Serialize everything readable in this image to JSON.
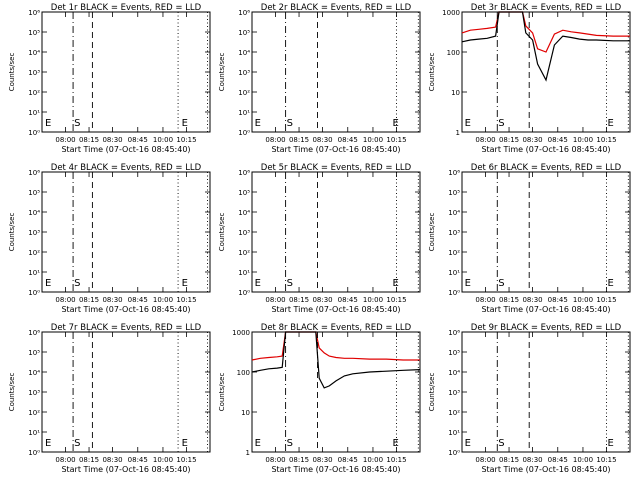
{
  "chart_data": [
    {
      "type": "line",
      "title": "Det 1r BLACK = Events, RED = LLD",
      "ylabel": "Counts/sec",
      "xlabel": "Start Time (07-Oct-16 08:45:40)",
      "xticks": [
        "08:00",
        "08:15",
        "08:30",
        "08:45",
        "10:00",
        "10:15"
      ],
      "yscale": "log",
      "ylim": [
        1,
        10000000.0
      ],
      "yticks": [
        "10⁰",
        "10¹",
        "10²",
        "10³",
        "10⁴",
        "10⁵",
        "10⁶"
      ],
      "markers": [
        {
          "label": "E",
          "x": 0.012
        },
        {
          "label": "S",
          "x": 0.185
        },
        {
          "label": "E",
          "x": 0.825
        }
      ],
      "vlines": [
        {
          "x": 0.185,
          "style": "dashdot"
        },
        {
          "x": 0.3,
          "style": "dashed"
        },
        {
          "x": 0.81,
          "style": "dotted"
        },
        {
          "x": 0.985,
          "style": "dotted"
        }
      ],
      "series": []
    },
    {
      "type": "line",
      "title": "Det 2r BLACK = Events, RED = LLD",
      "ylabel": "Counts/sec",
      "xlabel": "Start Time (07-Oct-16 08:45:40)",
      "xticks": [
        "08:00",
        "08:15",
        "08:30",
        "08:45",
        "10:00",
        "10:15"
      ],
      "yscale": "log",
      "ylim": [
        1,
        10000000.0
      ],
      "yticks": [
        "10⁰",
        "10¹",
        "10²",
        "10³",
        "10⁴",
        "10⁵",
        "10⁶"
      ],
      "markers": [
        {
          "label": "E",
          "x": 0.01
        },
        {
          "label": "S",
          "x": 0.2
        },
        {
          "label": "E",
          "x": 0.83
        }
      ],
      "vlines": [
        {
          "x": 0.2,
          "style": "dashdot"
        },
        {
          "x": 0.39,
          "style": "dashed"
        },
        {
          "x": 0.86,
          "style": "dotted"
        },
        {
          "x": 0.99,
          "style": "dotted"
        }
      ],
      "series": []
    },
    {
      "type": "line",
      "title": "Det 3r BLACK = Events, RED = LLD",
      "ylabel": "Counts/sec",
      "xlabel": "Start Time (07-Oct-16 08:45:40)",
      "xticks": [
        "08:00",
        "08:15",
        "08:30",
        "08:45",
        "10:00",
        "10:15"
      ],
      "yscale": "log",
      "ylim": [
        1,
        1000
      ],
      "yticks": [
        "1",
        "10",
        "100",
        "1000"
      ],
      "markers": [
        {
          "label": "E",
          "x": 0.01
        },
        {
          "label": "S",
          "x": 0.21
        },
        {
          "label": "E",
          "x": 0.86
        }
      ],
      "vlines": [
        {
          "x": 0.21,
          "style": "dashdot"
        },
        {
          "x": 0.4,
          "style": "dashed"
        },
        {
          "x": 0.86,
          "style": "dotted"
        },
        {
          "x": 0.99,
          "style": "dotted"
        }
      ],
      "series": [
        {
          "name": "LLD",
          "color": "#e00000",
          "x": [
            0,
            0.05,
            0.1,
            0.15,
            0.2,
            0.22,
            0.25,
            0.28,
            0.3,
            0.33,
            0.36,
            0.38,
            0.42,
            0.45,
            0.5,
            0.55,
            0.6,
            0.65,
            0.7,
            0.75,
            0.8,
            0.9,
            1.0
          ],
          "y": [
            300,
            350,
            370,
            390,
            420,
            1000,
            1000,
            1000,
            1000,
            1000,
            1000,
            450,
            300,
            120,
            100,
            280,
            350,
            320,
            300,
            280,
            260,
            250,
            250
          ]
        },
        {
          "name": "Events",
          "color": "#000000",
          "x": [
            0,
            0.05,
            0.1,
            0.15,
            0.2,
            0.22,
            0.25,
            0.28,
            0.3,
            0.33,
            0.36,
            0.38,
            0.42,
            0.45,
            0.5,
            0.55,
            0.6,
            0.65,
            0.7,
            0.75,
            0.8,
            0.9,
            1.0
          ],
          "y": [
            180,
            200,
            210,
            220,
            250,
            1000,
            1000,
            1000,
            1000,
            1000,
            1000,
            300,
            200,
            50,
            20,
            150,
            250,
            230,
            210,
            200,
            200,
            190,
            190
          ]
        }
      ]
    },
    {
      "type": "line",
      "title": "Det 4r BLACK = Events, RED = LLD",
      "ylabel": "Counts/sec",
      "xlabel": "Start Time (07-Oct-16 08:45:40)",
      "xticks": [
        "08:00",
        "08:15",
        "08:30",
        "08:45",
        "10:00",
        "10:15"
      ],
      "yscale": "log",
      "ylim": [
        1,
        10000000.0
      ],
      "yticks": [
        "10⁰",
        "10¹",
        "10²",
        "10³",
        "10⁴",
        "10⁵",
        "10⁶"
      ],
      "markers": [
        {
          "label": "E",
          "x": 0.012
        },
        {
          "label": "S",
          "x": 0.185
        },
        {
          "label": "E",
          "x": 0.825
        }
      ],
      "vlines": [
        {
          "x": 0.185,
          "style": "dashdot"
        },
        {
          "x": 0.3,
          "style": "dashed"
        },
        {
          "x": 0.81,
          "style": "dotted"
        },
        {
          "x": 0.985,
          "style": "dotted"
        }
      ],
      "series": []
    },
    {
      "type": "line",
      "title": "Det 5r BLACK = Events, RED = LLD",
      "ylabel": "Counts/sec",
      "xlabel": "Start Time (07-Oct-16 08:45:40)",
      "xticks": [
        "08:00",
        "08:15",
        "08:30",
        "08:45",
        "10:00",
        "10:15"
      ],
      "yscale": "log",
      "ylim": [
        1,
        10000000.0
      ],
      "yticks": [
        "10⁰",
        "10¹",
        "10²",
        "10³",
        "10⁴",
        "10⁵",
        "10⁶"
      ],
      "markers": [
        {
          "label": "E",
          "x": 0.01
        },
        {
          "label": "S",
          "x": 0.2
        },
        {
          "label": "E",
          "x": 0.83
        }
      ],
      "vlines": [
        {
          "x": 0.2,
          "style": "dashdot"
        },
        {
          "x": 0.39,
          "style": "dashed"
        },
        {
          "x": 0.86,
          "style": "dotted"
        },
        {
          "x": 0.99,
          "style": "dotted"
        }
      ],
      "series": []
    },
    {
      "type": "line",
      "title": "Det 6r BLACK = Events, RED = LLD",
      "ylabel": "Counts/sec",
      "xlabel": "Start Time (07-Oct-16 08:45:40)",
      "xticks": [
        "08:00",
        "08:15",
        "08:30",
        "08:45",
        "10:00",
        "10:15"
      ],
      "yscale": "log",
      "ylim": [
        1,
        10000000.0
      ],
      "yticks": [
        "10⁰",
        "10¹",
        "10²",
        "10³",
        "10⁴",
        "10⁵",
        "10⁶"
      ],
      "markers": [
        {
          "label": "E",
          "x": 0.01
        },
        {
          "label": "S",
          "x": 0.21
        },
        {
          "label": "E",
          "x": 0.86
        }
      ],
      "vlines": [
        {
          "x": 0.21,
          "style": "dashdot"
        },
        {
          "x": 0.4,
          "style": "dashed"
        },
        {
          "x": 0.86,
          "style": "dotted"
        },
        {
          "x": 0.99,
          "style": "dotted"
        }
      ],
      "series": []
    },
    {
      "type": "line",
      "title": "Det 7r BLACK = Events, RED = LLD",
      "ylabel": "Counts/sec",
      "xlabel": "Start Time (07-Oct-16 08:45:40)",
      "xticks": [
        "08:00",
        "08:15",
        "08:30",
        "08:45",
        "10:00",
        "10:15"
      ],
      "yscale": "log",
      "ylim": [
        1,
        10000000.0
      ],
      "yticks": [
        "10⁰",
        "10¹",
        "10²",
        "10³",
        "10⁴",
        "10⁵",
        "10⁶"
      ],
      "markers": [
        {
          "label": "E",
          "x": 0.012
        },
        {
          "label": "S",
          "x": 0.185
        },
        {
          "label": "E",
          "x": 0.825
        }
      ],
      "vlines": [
        {
          "x": 0.185,
          "style": "dashdot"
        },
        {
          "x": 0.3,
          "style": "dashed"
        },
        {
          "x": 0.81,
          "style": "dotted"
        },
        {
          "x": 0.985,
          "style": "dotted"
        }
      ],
      "series": []
    },
    {
      "type": "line",
      "title": "Det 8r BLACK = Events, RED = LLD",
      "ylabel": "Counts/sec",
      "xlabel": "Start Time (07-Oct-16 08:45:40)",
      "xticks": [
        "08:00",
        "08:15",
        "08:30",
        "08:45",
        "10:00",
        "10:15"
      ],
      "yscale": "log",
      "ylim": [
        1,
        1000
      ],
      "yticks": [
        "1",
        "10",
        "100",
        "1000"
      ],
      "markers": [
        {
          "label": "E",
          "x": 0.01
        },
        {
          "label": "S",
          "x": 0.2
        },
        {
          "label": "E",
          "x": 0.83
        }
      ],
      "vlines": [
        {
          "x": 0.2,
          "style": "dashdot"
        },
        {
          "x": 0.39,
          "style": "dashed"
        },
        {
          "x": 0.86,
          "style": "dotted"
        },
        {
          "x": 0.99,
          "style": "dotted"
        }
      ],
      "series": [
        {
          "name": "LLD",
          "color": "#e00000",
          "x": [
            0,
            0.05,
            0.1,
            0.15,
            0.18,
            0.2,
            0.22,
            0.25,
            0.3,
            0.35,
            0.38,
            0.4,
            0.43,
            0.46,
            0.5,
            0.55,
            0.6,
            0.7,
            0.8,
            0.9,
            1.0
          ],
          "y": [
            200,
            220,
            230,
            240,
            250,
            1000,
            1000,
            1000,
            1000,
            1000,
            1000,
            400,
            300,
            250,
            230,
            220,
            220,
            210,
            210,
            200,
            200
          ]
        },
        {
          "name": "Events",
          "color": "#000000",
          "x": [
            0,
            0.05,
            0.1,
            0.15,
            0.18,
            0.2,
            0.22,
            0.25,
            0.3,
            0.35,
            0.38,
            0.4,
            0.43,
            0.46,
            0.5,
            0.55,
            0.6,
            0.7,
            0.8,
            0.9,
            1.0
          ],
          "y": [
            100,
            110,
            120,
            125,
            130,
            1000,
            1000,
            1000,
            1000,
            1000,
            1000,
            70,
            40,
            45,
            60,
            80,
            90,
            100,
            105,
            110,
            115
          ]
        }
      ]
    },
    {
      "type": "line",
      "title": "Det 9r BLACK = Events, RED = LLD",
      "ylabel": "Counts/sec",
      "xlabel": "Start Time (07-Oct-16 08:45:40)",
      "xticks": [
        "08:00",
        "08:15",
        "08:30",
        "08:45",
        "10:00",
        "10:15"
      ],
      "yscale": "log",
      "ylim": [
        1,
        10000000.0
      ],
      "yticks": [
        "10⁰",
        "10¹",
        "10²",
        "10³",
        "10⁴",
        "10⁵",
        "10⁶"
      ],
      "markers": [
        {
          "label": "E",
          "x": 0.01
        },
        {
          "label": "S",
          "x": 0.21
        },
        {
          "label": "E",
          "x": 0.86
        }
      ],
      "vlines": [
        {
          "x": 0.21,
          "style": "dashdot"
        },
        {
          "x": 0.4,
          "style": "dashed"
        },
        {
          "x": 0.86,
          "style": "dotted"
        },
        {
          "x": 0.99,
          "style": "dotted"
        }
      ],
      "series": []
    }
  ]
}
